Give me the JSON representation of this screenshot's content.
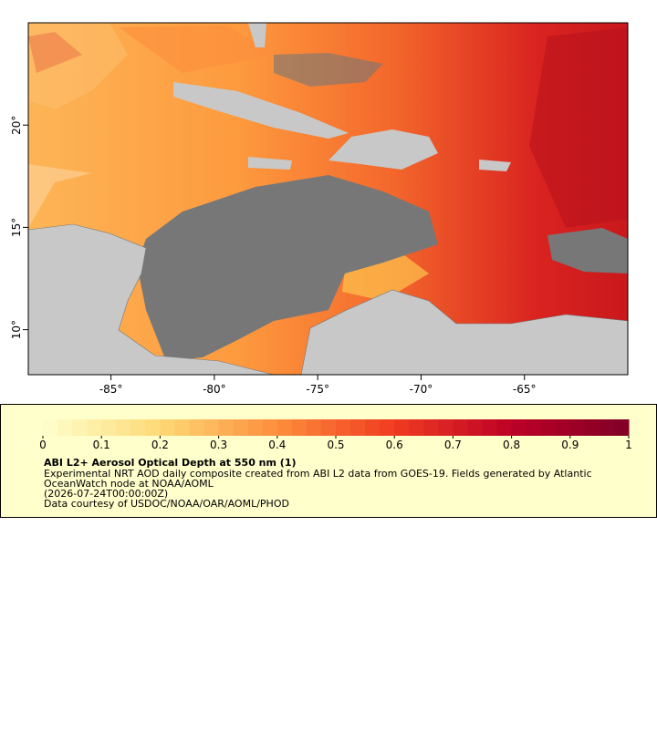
{
  "map": {
    "xlim": [
      -89,
      -60
    ],
    "ylim": [
      7.8,
      25
    ],
    "xticks": [
      {
        "value": -85,
        "label": "-85°"
      },
      {
        "value": -80,
        "label": "-80°"
      },
      {
        "value": -75,
        "label": "-75°"
      },
      {
        "value": -70,
        "label": "-70°"
      },
      {
        "value": -65,
        "label": "-65°"
      }
    ],
    "yticks": [
      {
        "value": 10,
        "label": "10°"
      },
      {
        "value": 15,
        "label": "15°"
      },
      {
        "value": 20,
        "label": "20°"
      }
    ]
  },
  "colorbar": {
    "lim": [
      0,
      1
    ],
    "ticks": [
      0,
      0.1,
      0.2,
      0.3,
      0.4,
      0.5,
      0.6,
      0.7,
      0.8,
      0.9,
      1
    ]
  },
  "legend": {
    "title": "ABI L2+ Aerosol Optical Depth at 550 nm (1)",
    "lines": [
      "Experimental NRT AOD daily composite created from ABI L2 data from GOES-19. Fields generated by Atlantic",
      "OceanWatch node at NOAA/AOML",
      "(2026-07-24T00:00:00Z)",
      "Data courtesy of USDOC/NOAA/OAR/AOML/PHOD"
    ]
  }
}
